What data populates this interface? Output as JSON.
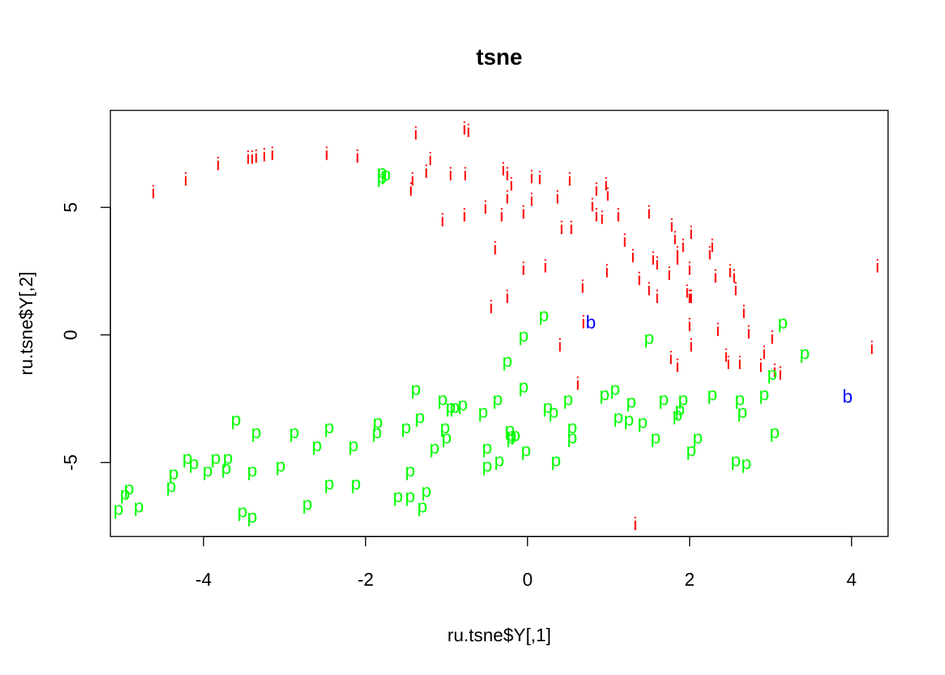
{
  "chart_data": {
    "type": "scatter",
    "title": "tsne",
    "xlabel": "ru.tsne$Y[,1]",
    "ylabel": "ru.tsne$Y[,2]",
    "xlim": [
      -5.15,
      4.45
    ],
    "ylim": [
      -7.9,
      8.8
    ],
    "xticks": [
      -4,
      -2,
      0,
      2,
      4
    ],
    "yticks": [
      -5,
      0,
      5
    ],
    "xtick_labels": [
      "-4",
      "-2",
      "0",
      "2",
      "4"
    ],
    "ytick_labels": [
      "-5",
      "0",
      "5"
    ],
    "grid": false,
    "legend": "none",
    "series": [
      {
        "symbol": "i",
        "color": "#ff0000",
        "points": [
          [
            -4.62,
            5.6
          ],
          [
            -4.22,
            6.1
          ],
          [
            -3.82,
            6.7
          ],
          [
            -3.45,
            6.95
          ],
          [
            -3.4,
            6.95
          ],
          [
            -3.35,
            7.0
          ],
          [
            -3.25,
            7.05
          ],
          [
            -3.15,
            7.1
          ],
          [
            -2.48,
            7.1
          ],
          [
            -2.1,
            7.0
          ],
          [
            -1.38,
            7.9
          ],
          [
            -1.2,
            6.9
          ],
          [
            -1.25,
            6.4
          ],
          [
            -1.42,
            6.1
          ],
          [
            -1.44,
            5.7
          ],
          [
            -0.95,
            6.3
          ],
          [
            -0.77,
            6.3
          ],
          [
            -0.78,
            8.1
          ],
          [
            -0.73,
            8.0
          ],
          [
            -0.3,
            6.5
          ],
          [
            -0.25,
            6.3
          ],
          [
            -0.2,
            5.9
          ],
          [
            -0.25,
            5.4
          ],
          [
            0.05,
            6.2
          ],
          [
            0.15,
            6.15
          ],
          [
            0.05,
            5.3
          ],
          [
            0.52,
            6.1
          ],
          [
            0.37,
            5.4
          ],
          [
            0.85,
            5.7
          ],
          [
            0.97,
            5.9
          ],
          [
            0.99,
            5.5
          ],
          [
            0.8,
            5.1
          ],
          [
            0.85,
            4.7
          ],
          [
            0.92,
            4.6
          ],
          [
            1.12,
            4.7
          ],
          [
            1.5,
            4.8
          ],
          [
            1.78,
            4.3
          ],
          [
            1.82,
            3.8
          ],
          [
            1.85,
            3.2
          ],
          [
            1.85,
            3.0
          ],
          [
            1.92,
            3.5
          ],
          [
            2.02,
            4.0
          ],
          [
            2.28,
            3.5
          ],
          [
            2.25,
            3.2
          ],
          [
            2.32,
            2.3
          ],
          [
            2.5,
            2.5
          ],
          [
            2.55,
            2.3
          ],
          [
            2.57,
            1.8
          ],
          [
            2.67,
            0.9
          ],
          [
            2.73,
            0.1
          ],
          [
            -1.05,
            4.5
          ],
          [
            -0.78,
            4.7
          ],
          [
            -0.52,
            5.0
          ],
          [
            -0.32,
            4.7
          ],
          [
            -0.05,
            4.8
          ],
          [
            0.42,
            4.2
          ],
          [
            0.54,
            4.2
          ],
          [
            1.2,
            3.7
          ],
          [
            1.3,
            3.1
          ],
          [
            1.55,
            3.0
          ],
          [
            1.6,
            2.8
          ],
          [
            1.75,
            2.4
          ],
          [
            2.0,
            2.6
          ],
          [
            1.38,
            2.2
          ],
          [
            1.5,
            1.8
          ],
          [
            1.6,
            1.5
          ],
          [
            1.97,
            1.7
          ],
          [
            2.0,
            1.5
          ],
          [
            2.02,
            1.5
          ],
          [
            0.98,
            2.5
          ],
          [
            -0.4,
            3.4
          ],
          [
            -0.05,
            2.6
          ],
          [
            0.22,
            2.7
          ],
          [
            0.68,
            1.9
          ],
          [
            -0.25,
            1.5
          ],
          [
            -0.45,
            1.1
          ],
          [
            0.69,
            0.5
          ],
          [
            2.0,
            0.4
          ],
          [
            2.35,
            0.2
          ],
          [
            2.02,
            -0.4
          ],
          [
            2.45,
            -0.8
          ],
          [
            2.48,
            -1.1
          ],
          [
            2.62,
            -1.1
          ],
          [
            2.88,
            -1.2
          ],
          [
            2.92,
            -0.7
          ],
          [
            3.05,
            -1.4
          ],
          [
            3.12,
            -1.5
          ],
          [
            3.02,
            -0.1
          ],
          [
            1.77,
            -0.9
          ],
          [
            1.85,
            -1.2
          ],
          [
            0.4,
            -0.4
          ],
          [
            0.62,
            -1.9
          ],
          [
            4.25,
            -0.5
          ],
          [
            4.32,
            2.7
          ],
          [
            1.33,
            -7.4
          ]
        ]
      },
      {
        "symbol": "p",
        "color": "#00ff00",
        "points": [
          [
            -1.8,
            6.4
          ],
          [
            -1.8,
            6.2
          ],
          [
            -1.75,
            6.3
          ],
          [
            0.2,
            0.8
          ],
          [
            -0.05,
            0.0
          ],
          [
            -0.25,
            -1.0
          ],
          [
            1.5,
            -0.1
          ],
          [
            3.15,
            0.5
          ],
          [
            3.42,
            -0.7
          ],
          [
            3.02,
            -1.5
          ],
          [
            -1.38,
            -2.1
          ],
          [
            -1.05,
            -2.5
          ],
          [
            -0.95,
            -2.8
          ],
          [
            -0.9,
            -2.8
          ],
          [
            -0.8,
            -2.7
          ],
          [
            -0.55,
            -3.0
          ],
          [
            -0.37,
            -2.5
          ],
          [
            -0.05,
            -2.0
          ],
          [
            0.25,
            -2.8
          ],
          [
            0.32,
            -3.0
          ],
          [
            0.5,
            -2.5
          ],
          [
            0.95,
            -2.3
          ],
          [
            1.08,
            -2.1
          ],
          [
            1.28,
            -2.6
          ],
          [
            1.12,
            -3.2
          ],
          [
            1.25,
            -3.3
          ],
          [
            1.42,
            -3.4
          ],
          [
            1.68,
            -2.5
          ],
          [
            1.92,
            -2.5
          ],
          [
            1.88,
            -2.9
          ],
          [
            1.85,
            -3.1
          ],
          [
            2.28,
            -2.3
          ],
          [
            2.62,
            -2.5
          ],
          [
            2.65,
            -3.0
          ],
          [
            2.92,
            -2.3
          ],
          [
            -3.6,
            -3.3
          ],
          [
            -3.35,
            -3.8
          ],
          [
            -2.88,
            -3.8
          ],
          [
            -2.45,
            -3.6
          ],
          [
            -1.85,
            -3.4
          ],
          [
            -1.86,
            -3.8
          ],
          [
            -1.5,
            -3.6
          ],
          [
            -1.33,
            -3.2
          ],
          [
            -1.02,
            -3.6
          ],
          [
            -1.0,
            -4.0
          ],
          [
            -1.15,
            -4.4
          ],
          [
            -0.5,
            -4.4
          ],
          [
            -0.22,
            -3.7
          ],
          [
            -0.2,
            -3.9
          ],
          [
            -0.15,
            -3.9
          ],
          [
            -0.2,
            -4.0
          ],
          [
            0.55,
            -3.6
          ],
          [
            0.55,
            -4.0
          ],
          [
            -0.02,
            -4.5
          ],
          [
            0.35,
            -4.9
          ],
          [
            -0.35,
            -4.9
          ],
          [
            -0.5,
            -5.1
          ],
          [
            1.58,
            -4.0
          ],
          [
            2.02,
            -4.5
          ],
          [
            2.1,
            -4.0
          ],
          [
            2.57,
            -4.9
          ],
          [
            2.7,
            -5.0
          ],
          [
            3.05,
            -3.8
          ],
          [
            -2.6,
            -4.3
          ],
          [
            -2.15,
            -4.3
          ],
          [
            -4.2,
            -4.8
          ],
          [
            -4.12,
            -5.0
          ],
          [
            -3.85,
            -4.8
          ],
          [
            -3.7,
            -4.8
          ],
          [
            -3.95,
            -5.3
          ],
          [
            -3.72,
            -5.2
          ],
          [
            -3.4,
            -5.3
          ],
          [
            -3.05,
            -5.1
          ],
          [
            -4.37,
            -5.4
          ],
          [
            -4.4,
            -5.9
          ],
          [
            -1.45,
            -5.3
          ],
          [
            -4.92,
            -6.0
          ],
          [
            -4.97,
            -6.2
          ],
          [
            -5.05,
            -6.8
          ],
          [
            -4.8,
            -6.7
          ],
          [
            -2.45,
            -5.8
          ],
          [
            -2.12,
            -5.8
          ],
          [
            -1.6,
            -6.3
          ],
          [
            -1.45,
            -6.3
          ],
          [
            -1.25,
            -6.1
          ],
          [
            -1.3,
            -6.7
          ],
          [
            -2.72,
            -6.6
          ],
          [
            -3.52,
            -6.9
          ],
          [
            -3.4,
            -7.1
          ]
        ]
      },
      {
        "symbol": "b",
        "color": "#0000ff",
        "points": [
          [
            0.78,
            0.5
          ],
          [
            3.95,
            -2.4
          ]
        ]
      }
    ]
  }
}
